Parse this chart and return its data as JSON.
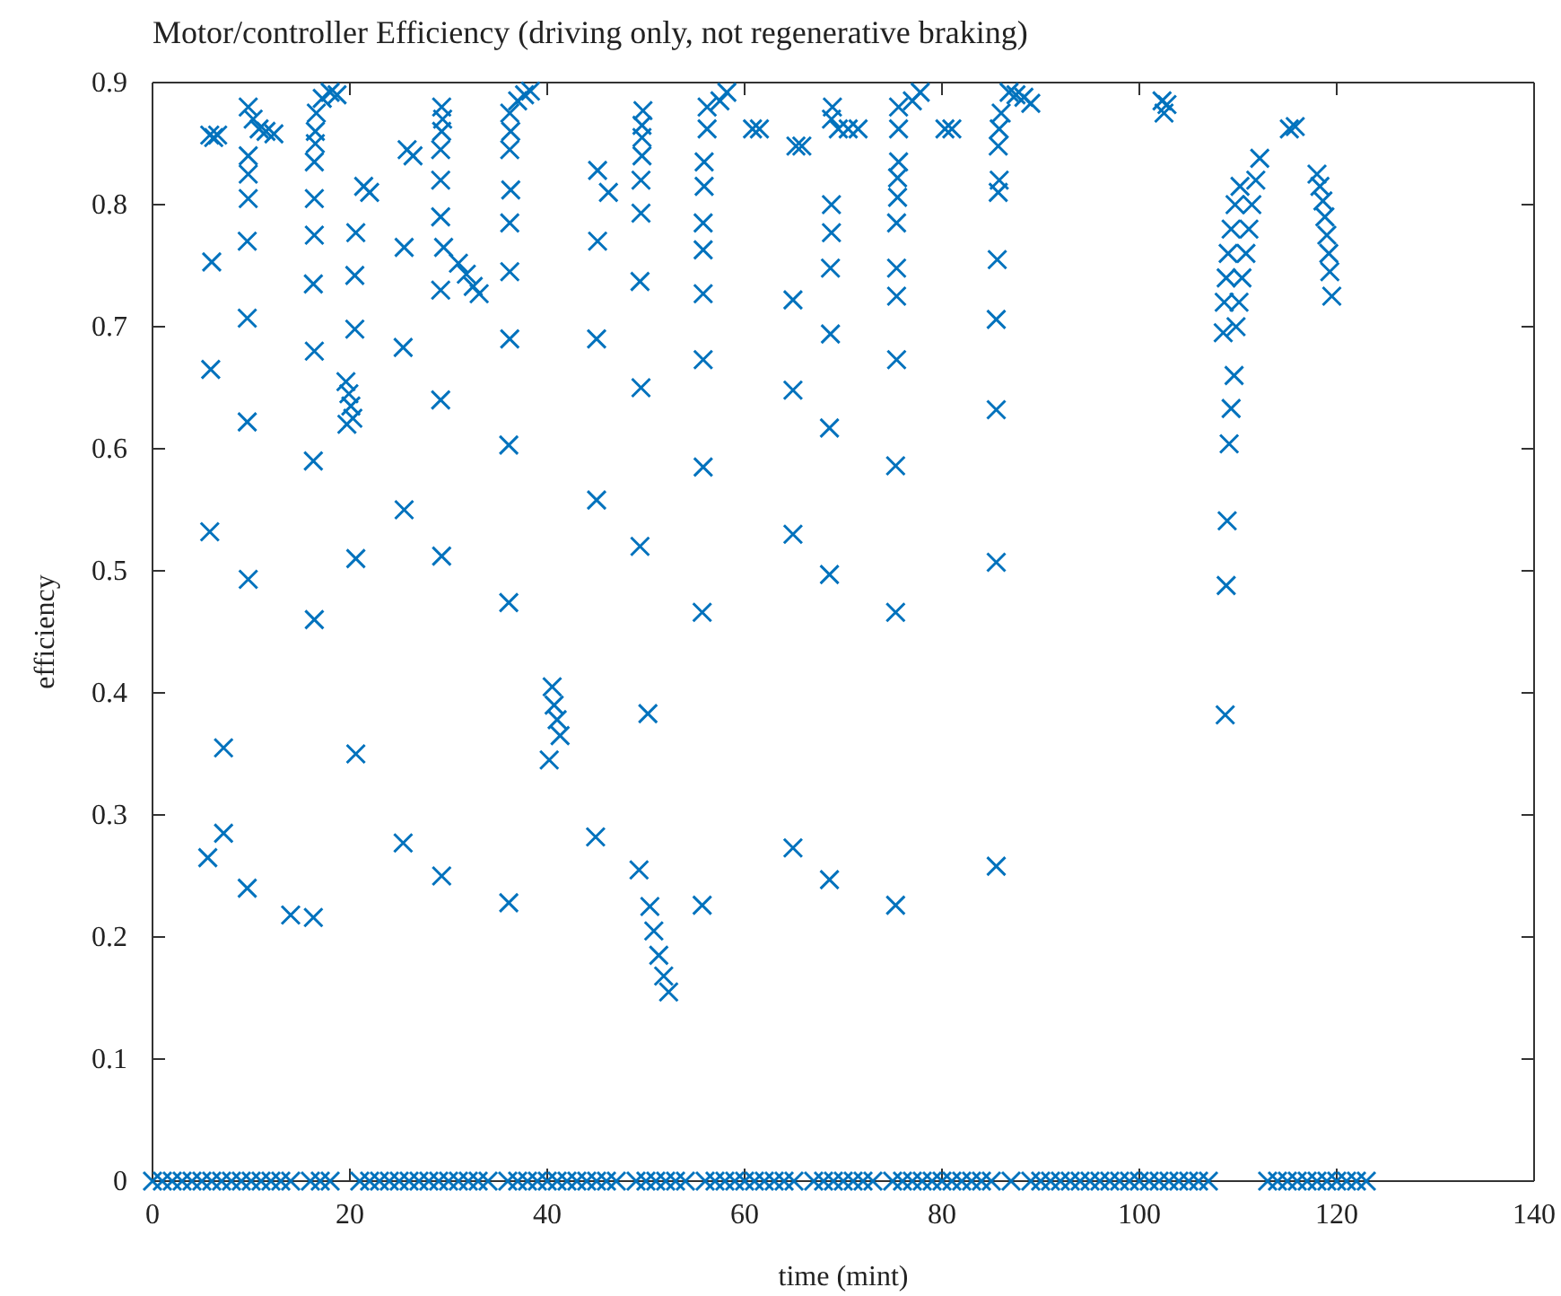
{
  "chart_data": {
    "type": "scatter",
    "title": "Motor/controller Efficiency (driving only, not regenerative braking)",
    "xlabel": "time (mint)",
    "ylabel": "efficiency",
    "xlim": [
      0,
      140
    ],
    "xticks": [
      0,
      20,
      40,
      60,
      80,
      100,
      120,
      140
    ],
    "ylim": [
      0,
      0.9
    ],
    "yticks": [
      0,
      0.1,
      0.2,
      0.3,
      0.4,
      0.5,
      0.6,
      0.7,
      0.8,
      0.9
    ],
    "grid": false,
    "marker": "cross",
    "series": [
      {
        "color": "#0072bd",
        "x": [
          6.2,
          6.6,
          5.8,
          6,
          5.9,
          5.8,
          5.6,
          7.2,
          7.2
        ],
        "values": [
          0.855,
          0.857,
          0.857,
          0.753,
          0.665,
          0.532,
          0.265,
          0.285,
          0.355
        ]
      },
      {
        "color": "#0072bd",
        "x": [
          9.7,
          10.2,
          10.8,
          11.5,
          12.3,
          9.7,
          9.7,
          9.7,
          9.6,
          9.6,
          9.6,
          9.7,
          9.6,
          14,
          16.3
        ],
        "values": [
          0.88,
          0.87,
          0.862,
          0.86,
          0.858,
          0.84,
          0.825,
          0.805,
          0.77,
          0.707,
          0.622,
          0.493,
          0.24,
          0.218,
          0.216
        ]
      },
      {
        "color": "#0072bd",
        "x": [
          16.6,
          16.5,
          16.5,
          16.4,
          16.4,
          16.4,
          16.3,
          16.4,
          16.3,
          16.4,
          17.2,
          18,
          18.7,
          19.6,
          19.9,
          20.1,
          20.3,
          19.7
        ],
        "values": [
          0.875,
          0.86,
          0.85,
          0.835,
          0.805,
          0.775,
          0.735,
          0.68,
          0.59,
          0.46,
          0.887,
          0.892,
          0.89,
          0.655,
          0.645,
          0.635,
          0.625,
          0.62
        ]
      },
      {
        "color": "#0072bd",
        "x": [
          20.6,
          20.5,
          20.5,
          20.6,
          20.6,
          21.4,
          22,
          25.5,
          25.4,
          25.5,
          25.4,
          25.8,
          26.4
        ],
        "values": [
          0.777,
          0.742,
          0.698,
          0.51,
          0.35,
          0.815,
          0.81,
          0.765,
          0.683,
          0.55,
          0.277,
          0.845,
          0.84
        ]
      },
      {
        "color": "#0072bd",
        "x": [
          29.3,
          29.4,
          29.3,
          29.2,
          29.2,
          29.2,
          29.5,
          29.2,
          29.2,
          29.3,
          29.3,
          31,
          31.8,
          32.5,
          33.1
        ],
        "values": [
          0.88,
          0.87,
          0.86,
          0.845,
          0.82,
          0.79,
          0.765,
          0.73,
          0.64,
          0.512,
          0.25,
          0.752,
          0.743,
          0.733,
          0.727
        ]
      },
      {
        "color": "#0072bd",
        "x": [
          36.2,
          36.3,
          36.2,
          36.3,
          36.2,
          36.2,
          36.2,
          36.1,
          36.1,
          36.1,
          37,
          37.7,
          38.3,
          40.5,
          40.7,
          41,
          41.3,
          40.2
        ],
        "values": [
          0.875,
          0.86,
          0.845,
          0.812,
          0.785,
          0.745,
          0.69,
          0.603,
          0.474,
          0.228,
          0.885,
          0.89,
          0.893,
          0.405,
          0.39,
          0.378,
          0.365,
          0.345
        ]
      },
      {
        "color": "#0072bd",
        "x": [
          45.1,
          45.1,
          45,
          45,
          44.9,
          46.2
        ],
        "values": [
          0.828,
          0.77,
          0.69,
          0.558,
          0.282,
          0.81
        ]
      },
      {
        "color": "#0072bd",
        "x": [
          49.7,
          49.6,
          49.6,
          49.6,
          49.5,
          49.5,
          49.4,
          49.5,
          49.4,
          49.3,
          50.2,
          50.4,
          50.8,
          51.3,
          51.8,
          52.3
        ],
        "values": [
          0.877,
          0.865,
          0.855,
          0.84,
          0.82,
          0.793,
          0.737,
          0.65,
          0.52,
          0.255,
          0.383,
          0.225,
          0.205,
          0.185,
          0.168,
          0.155
        ]
      },
      {
        "color": "#0072bd",
        "x": [
          56.2,
          56.2,
          55.9,
          55.9,
          55.8,
          55.8,
          55.8,
          55.8,
          55.8,
          55.7,
          55.7,
          57.5,
          58.2,
          60.8,
          61.5
        ],
        "values": [
          0.88,
          0.862,
          0.835,
          0.815,
          0.785,
          0.763,
          0.727,
          0.673,
          0.585,
          0.466,
          0.226,
          0.885,
          0.892,
          0.862,
          0.862
        ]
      },
      {
        "color": "#0072bd",
        "x": [
          65.2,
          65.8,
          64.9,
          64.9,
          64.9,
          64.9
        ],
        "values": [
          0.848,
          0.848,
          0.722,
          0.648,
          0.53,
          0.273
        ]
      },
      {
        "color": "#0072bd",
        "x": [
          68.9,
          68.8,
          69.5,
          70.5,
          71.5,
          68.8,
          68.8,
          68.7,
          68.7,
          68.6,
          68.6,
          68.6
        ],
        "values": [
          0.88,
          0.87,
          0.862,
          0.862,
          0.862,
          0.8,
          0.777,
          0.748,
          0.694,
          0.617,
          0.497,
          0.247
        ]
      },
      {
        "color": "#0072bd",
        "x": [
          75.6,
          75.6,
          75.6,
          75.5,
          75.5,
          75.4,
          75.4,
          75.4,
          75.4,
          75.3,
          75.3,
          75.3,
          77,
          77.8,
          80.3,
          81
        ],
        "values": [
          0.88,
          0.862,
          0.835,
          0.822,
          0.806,
          0.785,
          0.748,
          0.725,
          0.673,
          0.586,
          0.466,
          0.226,
          0.885,
          0.892,
          0.862,
          0.862
        ]
      },
      {
        "color": "#0072bd",
        "x": [
          86.8,
          87.5,
          88.3,
          89,
          86,
          85.8,
          85.7,
          85.8,
          85.7,
          85.6,
          85.5,
          85.5,
          85.5,
          85.5,
          102.3,
          102.8,
          102.5
        ],
        "values": [
          0.892,
          0.89,
          0.888,
          0.883,
          0.875,
          0.862,
          0.848,
          0.82,
          0.81,
          0.755,
          0.706,
          0.632,
          0.507,
          0.258,
          0.885,
          0.882,
          0.875
        ]
      },
      {
        "color": "#0072bd",
        "x": [
          108.7,
          108.8,
          108.9,
          109.1,
          109.3,
          109.6,
          109.8,
          110.1,
          110.4,
          110.8,
          111.1,
          111.4,
          111.8,
          112.2,
          108.5,
          108.6,
          108.8,
          109,
          109.3,
          109.7,
          110.2
        ],
        "values": [
          0.382,
          0.488,
          0.541,
          0.604,
          0.633,
          0.66,
          0.7,
          0.72,
          0.74,
          0.76,
          0.78,
          0.8,
          0.82,
          0.838,
          0.695,
          0.72,
          0.74,
          0.76,
          0.78,
          0.8,
          0.815
        ]
      },
      {
        "color": "#0072bd",
        "x": [
          115.2,
          115.8,
          118,
          118.3,
          118.6,
          118.8,
          119,
          119.2,
          119.3,
          119.5
        ],
        "values": [
          0.862,
          0.864,
          0.825,
          0.815,
          0.803,
          0.79,
          0.775,
          0.76,
          0.745,
          0.725
        ]
      },
      {
        "color": "#0072bd",
        "x": [
          0,
          1,
          2,
          3,
          4,
          5,
          6,
          7,
          8,
          9,
          10,
          11,
          12,
          13,
          14,
          16,
          17,
          18
        ],
        "values": [
          0,
          0,
          0,
          0,
          0,
          0,
          0,
          0,
          0,
          0,
          0,
          0,
          0,
          0,
          0,
          0,
          0,
          0
        ]
      },
      {
        "color": "#0072bd",
        "x": [
          21,
          22,
          23,
          24,
          25,
          26,
          27,
          28,
          29,
          30,
          31,
          32,
          33,
          34,
          36,
          37,
          38,
          39,
          40,
          41,
          42,
          43,
          44,
          45,
          46,
          47
        ],
        "values": [
          0,
          0,
          0,
          0,
          0,
          0,
          0,
          0,
          0,
          0,
          0,
          0,
          0,
          0,
          0,
          0,
          0,
          0,
          0,
          0,
          0,
          0,
          0,
          0,
          0,
          0
        ]
      },
      {
        "color": "#0072bd",
        "x": [
          49,
          50,
          51,
          52,
          53,
          54,
          56,
          57,
          58,
          59,
          60,
          61,
          62,
          63,
          64,
          65,
          67,
          68,
          69,
          70,
          71,
          72,
          73
        ],
        "values": [
          0,
          0,
          0,
          0,
          0,
          0,
          0,
          0,
          0,
          0,
          0,
          0,
          0,
          0,
          0,
          0,
          0,
          0,
          0,
          0,
          0,
          0,
          0
        ]
      },
      {
        "color": "#0072bd",
        "x": [
          75,
          76,
          77,
          78,
          79,
          80,
          81,
          82,
          83,
          84,
          85,
          87
        ],
        "values": [
          0,
          0,
          0,
          0,
          0,
          0,
          0,
          0,
          0,
          0,
          0,
          0
        ]
      },
      {
        "color": "#0072bd",
        "x": [
          89,
          90,
          91,
          92,
          93,
          94,
          95,
          96,
          97,
          98,
          99,
          100,
          101,
          102,
          103,
          104,
          105,
          106,
          107,
          113,
          114,
          115,
          116,
          117,
          118,
          119,
          120,
          121,
          122,
          123
        ],
        "values": [
          0,
          0,
          0,
          0,
          0,
          0,
          0,
          0,
          0,
          0,
          0,
          0,
          0,
          0,
          0,
          0,
          0,
          0,
          0,
          0,
          0,
          0,
          0,
          0,
          0,
          0,
          0,
          0,
          0,
          0
        ]
      }
    ]
  }
}
